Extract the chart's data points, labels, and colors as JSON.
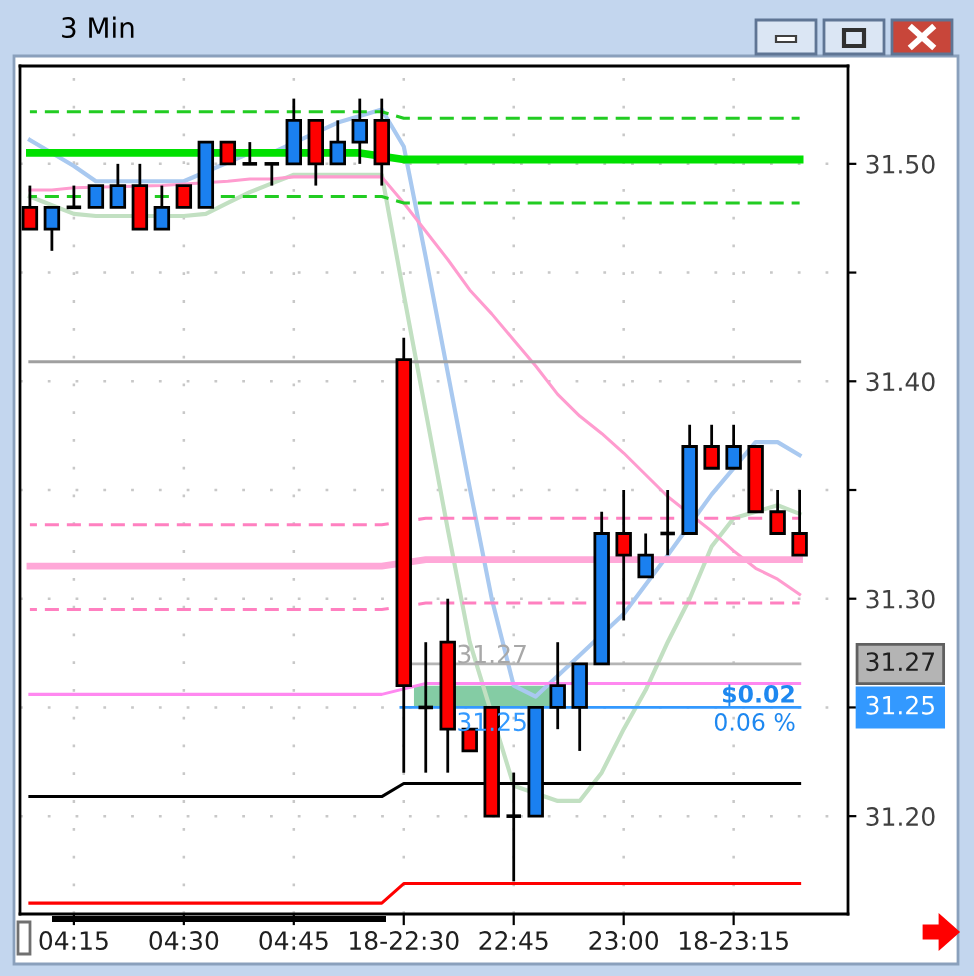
{
  "chart_data": {
    "type": "candlestick",
    "title": "3 Min",
    "categories": [
      null,
      null,
      "04:15",
      null,
      null,
      null,
      null,
      "04:30",
      null,
      null,
      null,
      null,
      "04:45",
      null,
      null,
      null,
      null,
      "18-22:30",
      null,
      null,
      null,
      null,
      "22:45",
      null,
      null,
      null,
      null,
      "23:00",
      null,
      null,
      null,
      null,
      "18-23:15",
      null,
      null,
      null
    ],
    "ohlc": [
      [
        31.48,
        31.49,
        31.47,
        31.47
      ],
      [
        31.47,
        31.48,
        31.46,
        31.48
      ],
      [
        31.48,
        31.49,
        31.48,
        31.48
      ],
      [
        31.48,
        31.49,
        31.48,
        31.49
      ],
      [
        31.48,
        31.5,
        31.48,
        31.49
      ],
      [
        31.49,
        31.5,
        31.47,
        31.47
      ],
      [
        31.47,
        31.49,
        31.47,
        31.48
      ],
      [
        31.49,
        31.49,
        31.48,
        31.48
      ],
      [
        31.48,
        31.51,
        31.48,
        31.51
      ],
      [
        31.51,
        31.51,
        31.5,
        31.5
      ],
      [
        31.5,
        31.51,
        31.5,
        31.5
      ],
      [
        31.5,
        31.5,
        31.49,
        31.5
      ],
      [
        31.5,
        31.53,
        31.5,
        31.52
      ],
      [
        31.52,
        31.52,
        31.49,
        31.5
      ],
      [
        31.5,
        31.52,
        31.5,
        31.51
      ],
      [
        31.51,
        31.53,
        31.5,
        31.52
      ],
      [
        31.52,
        31.53,
        31.49,
        31.5
      ],
      [
        31.41,
        31.42,
        31.22,
        31.26
      ],
      [
        31.25,
        31.28,
        31.22,
        31.25
      ],
      [
        31.28,
        31.3,
        31.22,
        31.24
      ],
      [
        31.24,
        31.24,
        31.23,
        31.23
      ],
      [
        31.25,
        31.25,
        31.2,
        31.2
      ],
      [
        31.2,
        31.22,
        31.17,
        31.2
      ],
      [
        31.2,
        31.25,
        31.2,
        31.25
      ],
      [
        31.25,
        31.28,
        31.24,
        31.26
      ],
      [
        31.25,
        31.27,
        31.23,
        31.27
      ],
      [
        31.27,
        31.34,
        31.27,
        31.33
      ],
      [
        31.33,
        31.35,
        31.29,
        31.32
      ],
      [
        31.31,
        31.33,
        31.31,
        31.32
      ],
      [
        31.33,
        31.35,
        31.32,
        31.33
      ],
      [
        31.33,
        31.38,
        31.33,
        31.37
      ],
      [
        31.37,
        31.38,
        31.36,
        31.36
      ],
      [
        31.36,
        31.38,
        31.36,
        31.37
      ],
      [
        31.37,
        31.37,
        31.34,
        31.34
      ],
      [
        31.34,
        31.35,
        31.33,
        31.33
      ],
      [
        31.33,
        31.35,
        31.32,
        31.32
      ]
    ],
    "colors": [
      "#ff0000",
      "#1a80f0",
      "#000000",
      "#1a80f0",
      "#1a80f0",
      "#ff0000",
      "#1a80f0",
      "#ff0000",
      "#1a80f0",
      "#ff0000",
      "#000000",
      "#000000",
      "#1a80f0",
      "#ff0000",
      "#1a80f0",
      "#1a80f0",
      "#ff0000",
      "#ff0000",
      "#000000",
      "#ff0000",
      "#ff0000",
      "#ff0000",
      "#000000",
      "#1a80f0",
      "#1a80f0",
      "#1a80f0",
      "#1a80f0",
      "#ff0000",
      "#1a80f0",
      "#000000",
      "#1a80f0",
      "#ff0000",
      "#1a80f0",
      "#ff0000",
      "#ff0000",
      "#ff0000"
    ],
    "series": [
      {
        "type": "line",
        "color": "#a9c9f0",
        "values": [
          31.511,
          31.505,
          31.499,
          31.492,
          31.492,
          31.492,
          31.492,
          31.492,
          null,
          null,
          31.505,
          31.505,
          null,
          null,
          31.519,
          null,
          31.525,
          31.508,
          31.457,
          31.404,
          31.351,
          31.3,
          31.26,
          31.255,
          null,
          null,
          null,
          31.293,
          null,
          31.32,
          null,
          31.348,
          null,
          31.372,
          31.372,
          31.366
        ]
      },
      {
        "type": "line",
        "color": "#c2e0c2",
        "values": [
          31.485,
          null,
          31.477,
          31.476,
          31.476,
          null,
          null,
          31.476,
          31.477,
          31.482,
          31.487,
          31.491,
          31.495,
          31.495,
          31.495,
          31.495,
          31.495,
          31.44,
          31.386,
          31.332,
          31.28,
          null,
          31.214,
          null,
          31.207,
          31.207,
          31.22,
          31.24,
          31.258,
          31.28,
          31.3,
          31.324,
          31.337,
          null,
          31.343,
          31.339
        ]
      },
      {
        "type": "line",
        "color": "#ff9ccf",
        "values": [
          31.488,
          31.488,
          31.489,
          null,
          null,
          null,
          31.49,
          null,
          null,
          31.492,
          31.493,
          31.493,
          31.494,
          31.494,
          31.494,
          31.494,
          31.494,
          31.482,
          31.469,
          31.456,
          31.442,
          31.431,
          31.419,
          31.407,
          31.394,
          31.384,
          31.376,
          31.367,
          31.357,
          31.347,
          null,
          31.331,
          31.322,
          31.314,
          31.309,
          31.302
        ]
      },
      {
        "type": "line",
        "color": "#22cc22",
        "line_style": "dashed",
        "values": [
          31.524,
          31.524,
          31.524,
          31.524,
          31.524,
          31.524,
          31.524,
          31.524,
          31.524,
          31.524,
          31.524,
          31.524,
          31.524,
          31.524,
          31.524,
          31.524,
          31.524,
          31.521,
          31.521,
          31.521,
          31.521,
          31.521,
          31.521,
          31.521,
          31.521,
          31.521,
          31.521,
          31.521,
          31.521,
          31.521,
          31.521,
          31.521,
          31.521,
          31.521,
          31.521,
          31.521
        ]
      },
      {
        "type": "line",
        "color": "#00e000",
        "values": [
          31.505,
          31.505,
          31.505,
          31.505,
          31.505,
          31.505,
          31.505,
          31.505,
          null,
          null,
          31.505,
          31.505,
          null,
          null,
          null,
          31.505,
          null,
          31.502,
          31.502,
          31.502,
          31.502,
          31.502,
          31.502,
          31.502,
          31.502,
          31.502,
          31.502,
          31.502,
          31.502,
          31.502,
          31.502,
          31.502,
          31.502,
          31.502,
          31.502,
          31.502
        ]
      },
      {
        "type": "line",
        "color": "#22cc22",
        "line_style": "dashed",
        "values": [
          31.485,
          31.485,
          31.485,
          null,
          null,
          null,
          31.485,
          null,
          null,
          31.485,
          31.485,
          31.485,
          31.485,
          31.485,
          31.485,
          31.485,
          31.485,
          31.482,
          31.482,
          31.482,
          31.482,
          31.482,
          31.482,
          31.482,
          31.482,
          31.482,
          31.482,
          31.482,
          31.482,
          31.482,
          31.482,
          31.482,
          31.482,
          31.482,
          31.482,
          31.482
        ]
      },
      {
        "type": "line",
        "color": "#a0a0a0",
        "values": [
          31.409,
          31.409,
          31.409,
          31.409,
          31.409,
          31.409,
          31.409,
          31.409,
          31.409,
          31.409,
          31.409,
          31.409,
          31.409,
          31.409,
          31.409,
          31.409,
          31.409,
          null,
          31.409,
          31.409,
          31.409,
          31.409,
          31.409,
          31.409,
          31.409,
          31.409,
          31.409,
          31.409,
          31.409,
          31.409,
          31.409,
          31.409,
          31.409,
          31.409,
          31.409,
          31.409
        ]
      },
      {
        "type": "line",
        "color": "#ff80c0",
        "line_style": "dashed",
        "values": [
          31.334,
          31.334,
          31.334,
          31.334,
          31.334,
          31.334,
          31.334,
          31.334,
          31.334,
          31.334,
          31.334,
          31.334,
          31.334,
          31.334,
          31.334,
          31.334,
          31.334,
          null,
          31.337,
          31.337,
          31.337,
          31.337,
          31.337,
          31.337,
          31.337,
          31.337,
          31.337,
          31.337,
          31.337,
          31.337,
          null,
          31.337,
          31.337,
          31.337,
          null,
          31.337
        ]
      },
      {
        "type": "line",
        "color": "#ffa8d8",
        "values": [
          31.315,
          31.315,
          31.315,
          31.315,
          31.315,
          31.315,
          31.315,
          31.315,
          31.315,
          31.315,
          31.315,
          31.315,
          31.315,
          31.315,
          31.315,
          31.315,
          31.315,
          null,
          31.318,
          31.318,
          31.318,
          31.318,
          31.318,
          31.318,
          31.318,
          31.318,
          null,
          31.318,
          null,
          31.318,
          31.318,
          31.318,
          31.318,
          31.318,
          31.318,
          31.318
        ]
      },
      {
        "type": "line",
        "color": "#ff80c0",
        "line_style": "dashed",
        "values": [
          31.295,
          31.295,
          31.295,
          31.295,
          31.295,
          31.295,
          31.295,
          31.295,
          31.295,
          31.295,
          31.295,
          31.295,
          31.295,
          31.295,
          31.295,
          31.295,
          31.295,
          null,
          31.298,
          31.298,
          31.298,
          31.298,
          31.298,
          31.298,
          31.298,
          31.298,
          null,
          31.298,
          31.298,
          31.298,
          31.298,
          31.298,
          31.298,
          31.298,
          31.298,
          31.298
        ]
      },
      {
        "type": "line",
        "color": "#ff88f0",
        "values": [
          31.256,
          31.256,
          31.256,
          31.256,
          31.256,
          31.256,
          31.256,
          31.256,
          31.256,
          31.256,
          31.256,
          31.256,
          31.256,
          31.256,
          31.256,
          31.256,
          31.256,
          null,
          31.261,
          null,
          31.261,
          31.261,
          31.261,
          31.261,
          null,
          null,
          31.261,
          31.261,
          31.261,
          31.261,
          31.261,
          31.261,
          31.261,
          31.261,
          31.261,
          31.261
        ]
      },
      {
        "type": "line",
        "color": "#000000",
        "values": [
          31.209,
          31.209,
          31.209,
          31.209,
          31.209,
          31.209,
          31.209,
          31.209,
          31.209,
          31.209,
          31.209,
          31.209,
          31.209,
          31.209,
          31.209,
          31.209,
          31.209,
          31.215,
          31.215,
          31.215,
          31.215,
          null,
          31.215,
          null,
          31.215,
          31.215,
          31.215,
          31.215,
          31.215,
          31.215,
          31.215,
          31.215,
          31.215,
          31.215,
          31.215,
          31.215
        ]
      },
      {
        "type": "line",
        "color": "#ff0000",
        "values": [
          31.16,
          31.16,
          31.16,
          31.16,
          31.16,
          31.16,
          31.16,
          31.16,
          31.16,
          31.16,
          31.16,
          31.16,
          31.16,
          31.16,
          31.16,
          31.16,
          31.16,
          31.169,
          31.169,
          31.169,
          31.169,
          31.169,
          31.169,
          31.169,
          31.169,
          31.169,
          31.169,
          31.169,
          31.169,
          31.169,
          31.169,
          31.169,
          31.169,
          31.169,
          31.169,
          31.169
        ]
      }
    ],
    "bands": [
      {
        "axis": "y",
        "from": 31.25,
        "to": 31.26,
        "color": "#84cca4"
      }
    ],
    "ref_lines": [
      {
        "axis": "y",
        "value": 31.27,
        "label": "31.27",
        "color": "#b4b4b4"
      },
      {
        "axis": "y",
        "value": 31.25,
        "label": "31.25",
        "color": "#3399ff"
      }
    ],
    "annotations": [
      "31.27",
      "31.25",
      "$0.02",
      "0.06 %"
    ],
    "ylim": [
      31.155,
      31.545
    ],
    "yticks": [
      {
        "value": 31.2,
        "label": "31.20"
      },
      {
        "value": 31.25,
        "label": null
      },
      {
        "value": 31.3,
        "label": "31.30"
      },
      {
        "value": 31.35,
        "label": null
      },
      {
        "value": 31.4,
        "label": "31.40"
      },
      {
        "value": 31.45,
        "label": null
      },
      {
        "value": 31.5,
        "label": "31.50"
      }
    ],
    "grid": true
  }
}
